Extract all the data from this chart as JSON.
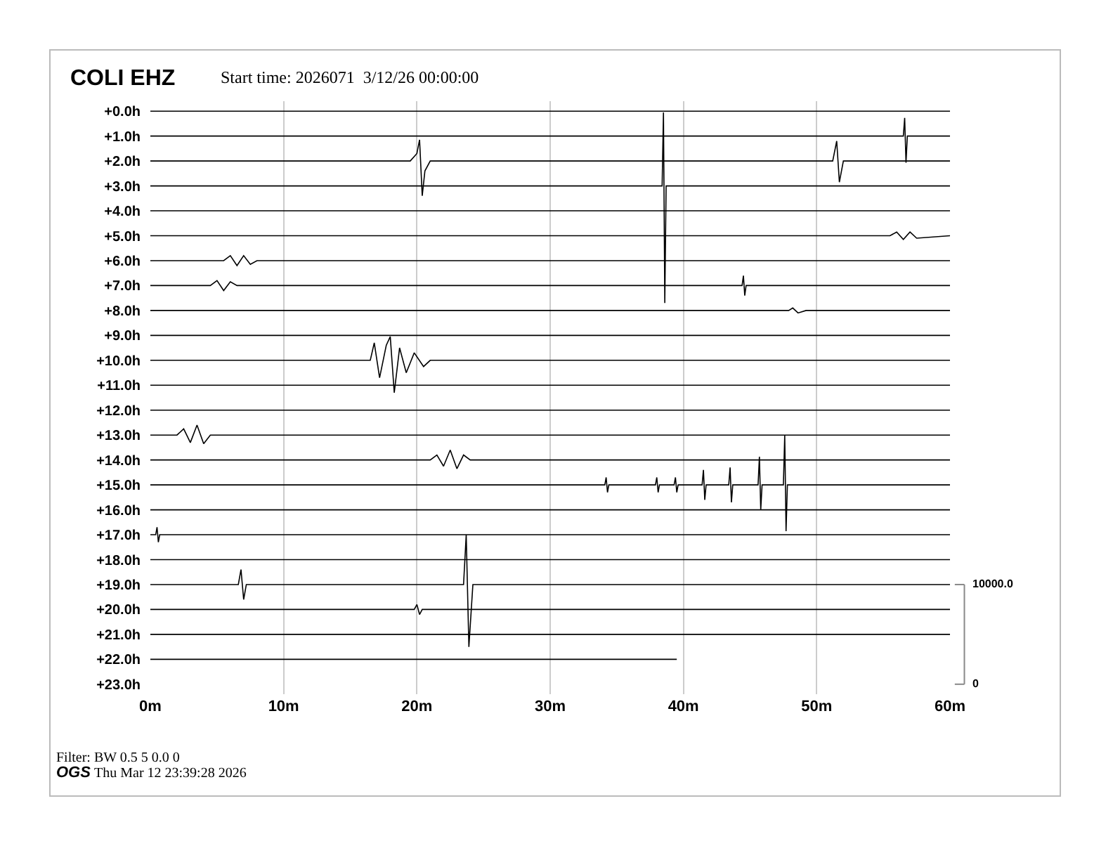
{
  "chart_data": {
    "type": "line",
    "title": "COLI EHZ",
    "subtitle": "Start time: 2026071  3/12/26 00:00:00",
    "annotations": [
      "Filter: BW 0.5 5 0.0 0",
      "OGS",
      "Thu Mar 12 23:39:28 2026"
    ],
    "xlim": [
      0,
      60
    ],
    "xticks": [
      {
        "value": 0,
        "label": "0m"
      },
      {
        "value": 10,
        "label": "10m"
      },
      {
        "value": 20,
        "label": "20m"
      },
      {
        "value": 30,
        "label": "30m"
      },
      {
        "value": 40,
        "label": "40m"
      },
      {
        "value": 50,
        "label": "50m"
      },
      {
        "value": 60,
        "label": "60m"
      }
    ],
    "ylim": [
      23.4,
      -0.4
    ],
    "yticks": [
      {
        "value": 0,
        "label": "+0.0h"
      },
      {
        "value": 1,
        "label": "+1.0h"
      },
      {
        "value": 2,
        "label": "+2.0h"
      },
      {
        "value": 3,
        "label": "+3.0h"
      },
      {
        "value": 4,
        "label": "+4.0h"
      },
      {
        "value": 5,
        "label": "+5.0h"
      },
      {
        "value": 6,
        "label": "+6.0h"
      },
      {
        "value": 7,
        "label": "+7.0h"
      },
      {
        "value": 8,
        "label": "+8.0h"
      },
      {
        "value": 9,
        "label": "+9.0h"
      },
      {
        "value": 10,
        "label": "+10.0h"
      },
      {
        "value": 11,
        "label": "+11.0h"
      },
      {
        "value": 12,
        "label": "+12.0h"
      },
      {
        "value": 13,
        "label": "+13.0h"
      },
      {
        "value": 14,
        "label": "+14.0h"
      },
      {
        "value": 15,
        "label": "+15.0h"
      },
      {
        "value": 16,
        "label": "+16.0h"
      },
      {
        "value": 17,
        "label": "+17.0h"
      },
      {
        "value": 18,
        "label": "+18.0h"
      },
      {
        "value": 19,
        "label": "+19.0h"
      },
      {
        "value": 20,
        "label": "+20.0h"
      },
      {
        "value": 21,
        "label": "+21.0h"
      },
      {
        "value": 22,
        "label": "+22.0h"
      },
      {
        "value": 23,
        "label": "+23.0h"
      }
    ],
    "y2lim": [
      -1000,
      58500
    ],
    "y2ticks": [
      0,
      {
        "value": 10000,
        "label": "10000.0"
      }
    ],
    "grid": "x",
    "series": [
      {
        "color": "#000000",
        "x": [
          0,
          60
        ],
        "values": [
          0,
          0
        ]
      },
      {
        "color": "#000000",
        "x": [
          0,
          56.5,
          56.6,
          56.7,
          56.8,
          60
        ],
        "values": [
          1,
          1,
          0.27,
          2.07,
          1,
          1
        ]
      },
      {
        "color": "#000000",
        "x": [
          0,
          19.5,
          20,
          20.2,
          20.4,
          20.6,
          21,
          51.2,
          51.5,
          51.7,
          52,
          60
        ],
        "values": [
          2,
          2,
          1.7,
          1.15,
          3.4,
          2.4,
          2,
          2,
          1.2,
          2.85,
          2,
          2
        ]
      },
      {
        "color": "#000000",
        "x": [
          0,
          38.4,
          38.5,
          38.6,
          38.7,
          60
        ],
        "values": [
          3,
          3,
          0.05,
          7.7,
          3,
          3
        ]
      },
      {
        "color": "#000000",
        "x": [
          0,
          60
        ],
        "values": [
          4,
          4
        ]
      },
      {
        "color": "#000000",
        "x": [
          0,
          55.5,
          56,
          56.5,
          57,
          57.5,
          60
        ],
        "values": [
          5,
          5,
          4.85,
          5.15,
          4.85,
          5.1,
          5
        ]
      },
      {
        "color": "#000000",
        "x": [
          0,
          5.5,
          6,
          6.5,
          7,
          7.5,
          8,
          60
        ],
        "values": [
          6,
          6,
          5.8,
          6.2,
          5.8,
          6.15,
          6,
          6
        ]
      },
      {
        "color": "#000000",
        "x": [
          0,
          4.5,
          5,
          5.5,
          6,
          6.5,
          44.4,
          44.5,
          44.6,
          44.7,
          60
        ],
        "values": [
          7,
          7,
          6.8,
          7.2,
          6.85,
          7,
          7,
          6.6,
          7.4,
          7,
          7
        ]
      },
      {
        "color": "#000000",
        "x": [
          0,
          47.9,
          48.2,
          48.6,
          49.2,
          60
        ],
        "values": [
          8,
          8,
          7.9,
          8.1,
          8,
          8
        ]
      },
      {
        "color": "#000000",
        "x": [
          0,
          60
        ],
        "values": [
          9,
          9
        ]
      },
      {
        "color": "#000000",
        "x": [
          0,
          16.5,
          16.8,
          17.2,
          17.7,
          18,
          18.3,
          18.7,
          19.2,
          19.8,
          20.5,
          21,
          60
        ],
        "values": [
          10,
          10,
          9.3,
          10.7,
          9.4,
          9.05,
          11.3,
          9.5,
          10.5,
          9.7,
          10.25,
          10,
          10
        ]
      },
      {
        "color": "#000000",
        "x": [
          0,
          60
        ],
        "values": [
          11,
          11
        ]
      },
      {
        "color": "#000000",
        "x": [
          0,
          60
        ],
        "values": [
          12,
          12
        ]
      },
      {
        "color": "#000000",
        "x": [
          0,
          2,
          2.5,
          3,
          3.5,
          4,
          4.5,
          60
        ],
        "values": [
          13,
          13,
          12.75,
          13.3,
          12.6,
          13.35,
          13,
          13
        ]
      },
      {
        "color": "#000000",
        "x": [
          0,
          21,
          21.5,
          22,
          22.5,
          23,
          23.5,
          24,
          60
        ],
        "values": [
          14,
          14,
          13.8,
          14.25,
          13.6,
          14.35,
          13.8,
          14,
          14
        ]
      },
      {
        "color": "#000000",
        "x": [
          0,
          34.1,
          34.2,
          34.3,
          34.4,
          37.9,
          38,
          38.1,
          38.2,
          39.3,
          39.4,
          39.5,
          39.6,
          41.4,
          41.5,
          41.6,
          41.7,
          43.4,
          43.5,
          43.6,
          43.7,
          45.6,
          45.7,
          45.8,
          45.9,
          47.5,
          47.6,
          47.7,
          47.8,
          60
        ],
        "values": [
          15,
          15,
          14.7,
          15.3,
          15,
          15,
          14.7,
          15.3,
          15,
          15,
          14.7,
          15.3,
          15,
          15,
          14.4,
          15.6,
          15,
          15,
          14.3,
          15.7,
          15,
          15,
          13.87,
          16,
          15,
          15,
          13,
          16.86,
          15,
          15
        ]
      },
      {
        "color": "#000000",
        "x": [
          0,
          60
        ],
        "values": [
          16,
          16
        ]
      },
      {
        "color": "#000000",
        "x": [
          0,
          0.4,
          0.5,
          0.6,
          0.7,
          60
        ],
        "values": [
          17,
          17,
          16.7,
          17.3,
          17,
          17
        ]
      },
      {
        "color": "#000000",
        "x": [
          0,
          60
        ],
        "values": [
          18,
          18
        ]
      },
      {
        "color": "#000000",
        "x": [
          0,
          6.6,
          6.8,
          7,
          7.2,
          23.5,
          23.7,
          23.9,
          24.2,
          60
        ],
        "values": [
          19,
          19,
          18.4,
          19.6,
          19,
          19,
          17,
          21.5,
          19,
          19
        ]
      },
      {
        "color": "#000000",
        "x": [
          0,
          19.8,
          20,
          20.2,
          20.4,
          60
        ],
        "values": [
          20,
          20,
          19.8,
          20.2,
          20,
          20
        ]
      },
      {
        "color": "#000000",
        "x": [
          0,
          60
        ],
        "values": [
          21,
          21
        ]
      },
      {
        "color": "#000000",
        "x": [
          0,
          39.5
        ],
        "values": [
          22,
          22
        ]
      }
    ]
  }
}
